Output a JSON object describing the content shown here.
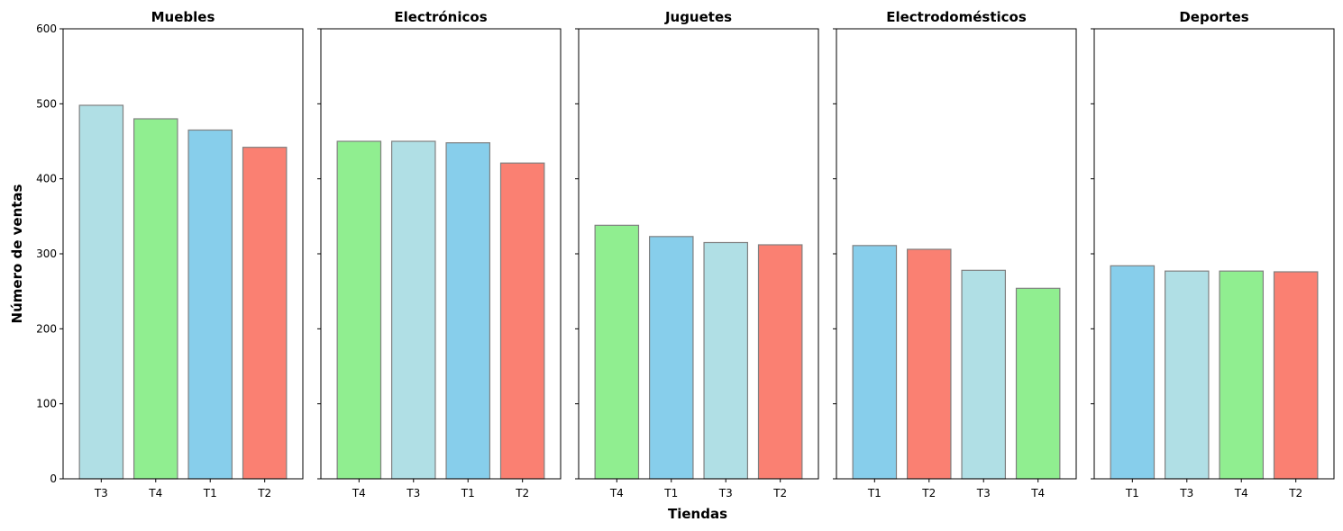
{
  "chart_data": {
    "type": "bar",
    "xlabel": "Tiendas",
    "ylabel": "Número de ventas",
    "ylim": [
      0,
      600
    ],
    "yticks": [
      0,
      100,
      200,
      300,
      400,
      500,
      600
    ],
    "grid": false,
    "shared_y": true,
    "colors": {
      "T1": "#87ceeb",
      "T2": "#fa8072",
      "T3": "#b0dfe5",
      "T4": "#90ee90",
      "edge": "#808080"
    },
    "panels": [
      {
        "title": "Muebles",
        "categories": [
          "T3",
          "T4",
          "T1",
          "T2"
        ],
        "values": [
          498,
          480,
          465,
          442
        ]
      },
      {
        "title": "Electrónicos",
        "categories": [
          "T4",
          "T3",
          "T1",
          "T2"
        ],
        "values": [
          450,
          450,
          448,
          421
        ]
      },
      {
        "title": "Juguetes",
        "categories": [
          "T4",
          "T1",
          "T3",
          "T2"
        ],
        "values": [
          338,
          323,
          315,
          312
        ]
      },
      {
        "title": "Electrodomésticos",
        "categories": [
          "T1",
          "T2",
          "T3",
          "T4"
        ],
        "values": [
          311,
          306,
          278,
          254
        ]
      },
      {
        "title": "Deportes",
        "categories": [
          "T1",
          "T3",
          "T4",
          "T2"
        ],
        "values": [
          284,
          277,
          277,
          276
        ]
      }
    ]
  }
}
